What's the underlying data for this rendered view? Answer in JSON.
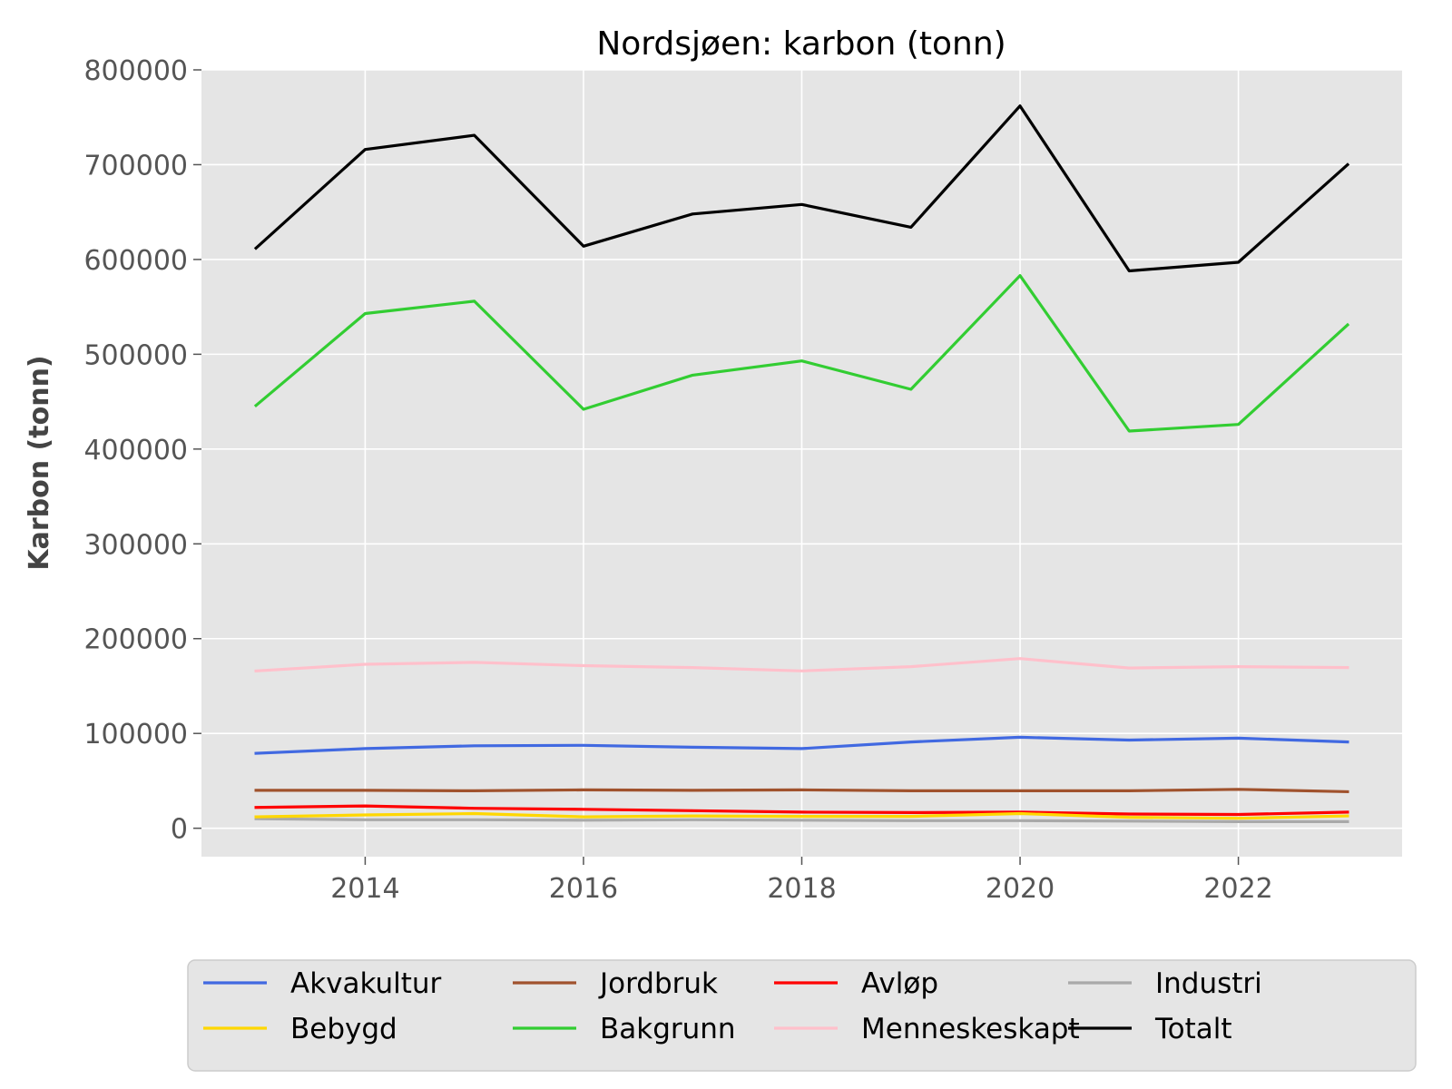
{
  "chart_data": {
    "type": "line",
    "title": "Nordsjøen: karbon (tonn)",
    "xlabel": "",
    "ylabel": "Karbon (tonn)",
    "x": [
      2013,
      2014,
      2015,
      2016,
      2017,
      2018,
      2019,
      2020,
      2021,
      2022,
      2023
    ],
    "xlim": [
      2012.5,
      2023.5
    ],
    "ylim": [
      -30000,
      800000
    ],
    "xticks": [
      2014,
      2016,
      2018,
      2020,
      2022
    ],
    "yticks": [
      0,
      100000,
      200000,
      300000,
      400000,
      500000,
      600000,
      700000,
      800000
    ],
    "grid": true,
    "legend_position": "bottom",
    "background": "#e5e5e5",
    "series": [
      {
        "name": "Akvakultur",
        "color": "#4169e1",
        "values": [
          79000,
          84000,
          87000,
          87500,
          85500,
          84000,
          91000,
          96000,
          93000,
          95000,
          91000
        ]
      },
      {
        "name": "Jordbruk",
        "color": "#a0522d",
        "values": [
          40000,
          40000,
          39500,
          40500,
          40000,
          40500,
          39500,
          39500,
          39500,
          41000,
          38500
        ]
      },
      {
        "name": "Avløp",
        "color": "#ff0000",
        "values": [
          22000,
          23500,
          21000,
          20000,
          18500,
          17000,
          16500,
          17000,
          15000,
          14500,
          17000
        ]
      },
      {
        "name": "Industri",
        "color": "#a9a9a9",
        "values": [
          10000,
          9000,
          9000,
          8500,
          9000,
          8500,
          8000,
          8000,
          7500,
          7000,
          7000
        ]
      },
      {
        "name": "Bebygd",
        "color": "#ffd700",
        "values": [
          12000,
          14000,
          15500,
          12000,
          13000,
          12500,
          12500,
          15500,
          11500,
          10500,
          13000
        ]
      },
      {
        "name": "Bakgrunn",
        "color": "#32cd32",
        "values": [
          446000,
          543000,
          556000,
          442000,
          478000,
          493000,
          463000,
          583000,
          419000,
          426000,
          531000
        ]
      },
      {
        "name": "Menneskeskapt",
        "color": "#ffc0cb",
        "values": [
          166000,
          173000,
          175000,
          171500,
          169500,
          166000,
          170500,
          179000,
          169000,
          170500,
          169500
        ]
      },
      {
        "name": "Totalt",
        "color": "#000000",
        "values": [
          612000,
          716000,
          731000,
          614000,
          648000,
          658000,
          634000,
          762000,
          588000,
          597000,
          700000
        ]
      }
    ]
  }
}
